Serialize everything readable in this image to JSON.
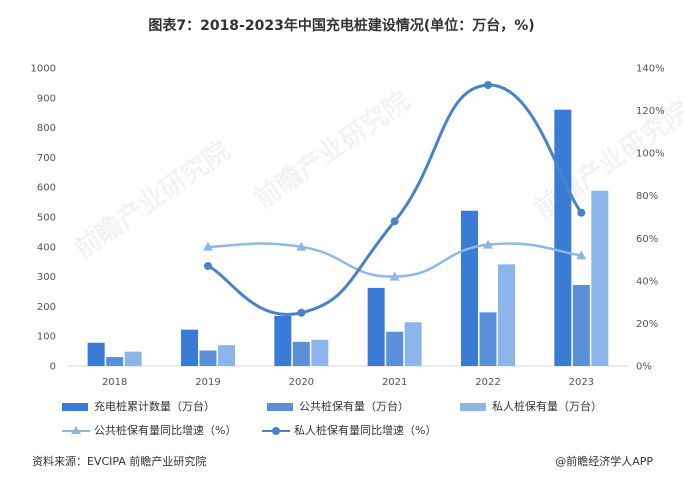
{
  "title": "图表7：2018-2023年中国充电桩建设情况(单位：万台，%)",
  "footer": {
    "source": "资料来源：EVCIPA 前瞻产业研究院",
    "brand": "@前瞻经济学人APP"
  },
  "watermark": "前瞻产业研究院",
  "colors": {
    "cumulative": "#3a7bd5",
    "public": "#5b8fd9",
    "private": "#8cb6ea",
    "public_growth": "#8fb8e6",
    "private_growth": "#4a83c4"
  },
  "chart_data": {
    "type": "bar",
    "categories": [
      "2018",
      "2019",
      "2020",
      "2021",
      "2022",
      "2023"
    ],
    "left_axis": {
      "min": 0,
      "max": 1000,
      "step": 100,
      "ticks": [
        "0",
        "100",
        "200",
        "300",
        "400",
        "500",
        "600",
        "700",
        "800",
        "900",
        "1000"
      ]
    },
    "right_axis": {
      "min": 0,
      "max": 140,
      "step": 20,
      "ticks": [
        "0%",
        "20%",
        "40%",
        "60%",
        "80%",
        "100%",
        "120%",
        "140%"
      ]
    },
    "series": [
      {
        "name": "充电桩累计数量（万台）",
        "kind": "bar",
        "axis": "left",
        "values": [
          78,
          122,
          168,
          262,
          521,
          860
        ]
      },
      {
        "name": "公共桩保有量（万台）",
        "kind": "bar",
        "axis": "left",
        "values": [
          30,
          52,
          81,
          115,
          180,
          272
        ]
      },
      {
        "name": "私人桩保有量（万台）",
        "kind": "bar",
        "axis": "left",
        "values": [
          48,
          70,
          88,
          147,
          341,
          588
        ]
      },
      {
        "name": "公共桩保有量同比增速（%）",
        "kind": "line",
        "axis": "right",
        "marker": "triangle",
        "values": [
          null,
          56,
          56,
          42,
          57,
          52
        ]
      },
      {
        "name": "私人桩保有量同比增速（%）",
        "kind": "line",
        "axis": "right",
        "marker": "circle",
        "values": [
          null,
          47,
          25,
          68,
          132,
          72
        ]
      }
    ],
    "legend_position": "bottom",
    "grid": false
  }
}
